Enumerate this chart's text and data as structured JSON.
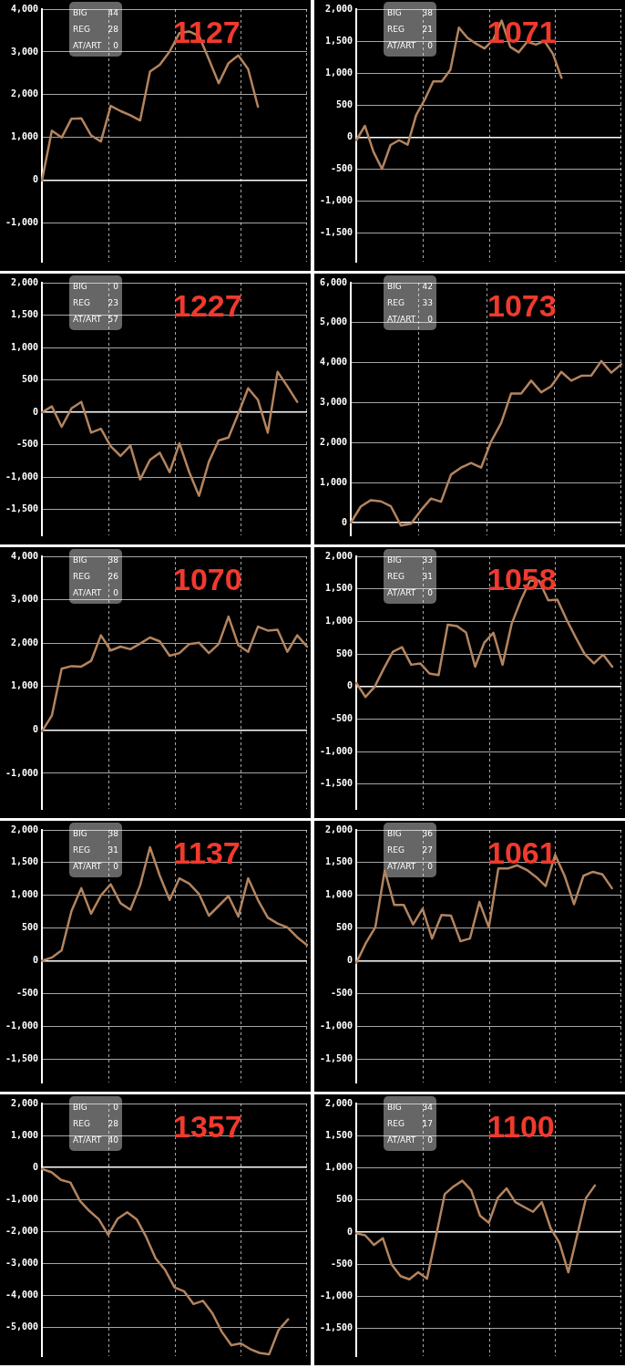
{
  "chart_data": [
    {
      "type": "line",
      "title": "1127",
      "annotations": [
        "BIG",
        "44",
        "REG",
        "28",
        "AT/ART",
        "0"
      ],
      "tick_labels": "y",
      "grid": true,
      "categories": [
        null,
        null,
        null,
        null,
        null,
        null,
        null,
        null,
        null,
        null,
        null,
        null,
        null,
        null,
        null,
        null,
        null,
        null,
        null,
        null,
        null,
        null,
        null,
        null,
        null,
        null,
        null,
        null
      ],
      "series": [
        {
          "color": "#b3845f",
          "values": [
            0,
            1160,
            1000,
            1440,
            1450,
            1050,
            910,
            1740,
            1620,
            1520,
            1400,
            2540,
            2700,
            3010,
            3440,
            3480,
            3370,
            2830,
            2270,
            2740,
            2920,
            2600,
            1720,
            null,
            null,
            null,
            null,
            null
          ]
        }
      ],
      "ylim": [
        -1900,
        4000
      ],
      "yticks": [
        {
          "value": 4000,
          "label": "4,000"
        },
        {
          "value": 3000,
          "label": "3,000"
        },
        {
          "value": 2000,
          "label": "2,000"
        },
        {
          "value": 1000,
          "label": "1,000"
        },
        0,
        {
          "value": -1000,
          "label": "-1,000"
        }
      ]
    },
    {
      "type": "line",
      "title": "1071",
      "annotations": [
        "BIG",
        "38",
        "REG",
        "21",
        "AT/ART",
        "0"
      ],
      "tick_labels": "y",
      "grid": true,
      "categories": [
        null,
        null,
        null,
        null,
        null,
        null,
        null,
        null,
        null,
        null,
        null,
        null,
        null,
        null,
        null,
        null,
        null,
        null,
        null,
        null,
        null,
        null,
        null,
        null,
        null,
        null,
        null,
        null,
        null,
        null,
        null,
        null
      ],
      "series": [
        {
          "color": "#b3845f",
          "values": [
            -50,
            175,
            -230,
            -500,
            -125,
            -50,
            -120,
            345,
            585,
            870,
            870,
            1050,
            1710,
            1550,
            1460,
            1385,
            1520,
            1820,
            1410,
            1325,
            1490,
            1445,
            1500,
            1300,
            925,
            null,
            null,
            null,
            null,
            null,
            null,
            null
          ]
        }
      ],
      "ylim": [
        -1950,
        2000
      ],
      "yticks": [
        {
          "value": 2000,
          "label": "2,000"
        },
        {
          "value": 1500,
          "label": "1,500"
        },
        {
          "value": 1000,
          "label": "1,000"
        },
        500,
        0,
        -500,
        {
          "value": -1000,
          "label": "-1,000"
        },
        {
          "value": -1500,
          "label": "-1,500"
        }
      ]
    },
    {
      "type": "line",
      "title": "1227",
      "annotations": [
        "BIG",
        "0",
        "REG",
        "23",
        "AT/ART",
        "57"
      ],
      "tick_labels": "y",
      "grid": true,
      "categories": [
        null,
        null,
        null,
        null,
        null,
        null,
        null,
        null,
        null,
        null,
        null,
        null,
        null,
        null,
        null,
        null,
        null,
        null,
        null,
        null,
        null,
        null,
        null,
        null,
        null,
        null,
        null,
        null
      ],
      "series": [
        {
          "color": "#b3845f",
          "values": [
            0,
            90,
            -225,
            60,
            160,
            -315,
            -255,
            -525,
            -675,
            -515,
            -1035,
            -735,
            -625,
            -925,
            -480,
            -925,
            -1290,
            -765,
            -435,
            -390,
            -20,
            370,
            190,
            -315,
            625,
            400,
            160,
            null
          ]
        }
      ],
      "ylim": [
        -1900,
        2000
      ],
      "yticks": [
        {
          "value": 2000,
          "label": "2,000"
        },
        {
          "value": 1500,
          "label": "1,500"
        },
        {
          "value": 1000,
          "label": "1,000"
        },
        500,
        0,
        -500,
        {
          "value": -1000,
          "label": "-1,000"
        },
        {
          "value": -1500,
          "label": "-1,500"
        }
      ]
    },
    {
      "type": "line",
      "title": "1073",
      "annotations": [
        "BIG",
        "42",
        "REG",
        "33",
        "AT/ART",
        "0"
      ],
      "tick_labels": "y",
      "grid": true,
      "categories": [
        null,
        null,
        null,
        null,
        null,
        null,
        null,
        null,
        null,
        null,
        null,
        null,
        null,
        null,
        null,
        null,
        null,
        null,
        null,
        null,
        null,
        null,
        null,
        null,
        null,
        null,
        null,
        null
      ],
      "series": [
        {
          "color": "#b3845f",
          "values": [
            0,
            405,
            560,
            530,
            405,
            -75,
            -30,
            310,
            600,
            520,
            1200,
            1375,
            1490,
            1375,
            2030,
            2490,
            3230,
            3230,
            3550,
            3260,
            3410,
            3770,
            3550,
            3670,
            3680,
            4040,
            3750,
            3960
          ]
        }
      ],
      "ylim": [
        -320,
        6000
      ],
      "yticks": [
        {
          "value": 6000,
          "label": "6,000"
        },
        {
          "value": 5000,
          "label": "5,000"
        },
        {
          "value": 4000,
          "label": "4,000"
        },
        {
          "value": 3000,
          "label": "3,000"
        },
        {
          "value": 2000,
          "label": "2,000"
        },
        {
          "value": 1000,
          "label": "1,000"
        },
        0
      ]
    },
    {
      "type": "line",
      "title": "1070",
      "annotations": [
        "BIG",
        "38",
        "REG",
        "26",
        "AT/ART",
        "0"
      ],
      "tick_labels": "y",
      "grid": true,
      "categories": [
        null,
        null,
        null,
        null,
        null,
        null,
        null,
        null,
        null,
        null,
        null,
        null,
        null,
        null,
        null,
        null,
        null,
        null,
        null,
        null,
        null,
        null,
        null,
        null,
        null,
        null,
        null,
        null
      ],
      "series": [
        {
          "color": "#b3845f",
          "values": [
            -30,
            330,
            1410,
            1470,
            1460,
            1590,
            2180,
            1830,
            1920,
            1860,
            1990,
            2130,
            2040,
            1710,
            1770,
            1980,
            2010,
            1770,
            1980,
            2610,
            1950,
            1800,
            2380,
            2290,
            2310,
            1800,
            2180,
            1920
          ]
        }
      ],
      "ylim": [
        -1820,
        4000
      ],
      "yticks": [
        {
          "value": 4000,
          "label": "4,000"
        },
        {
          "value": 3000,
          "label": "3,000"
        },
        {
          "value": 2000,
          "label": "2,000"
        },
        {
          "value": 1000,
          "label": "1,000"
        },
        0,
        {
          "value": -1000,
          "label": "-1,000"
        }
      ]
    },
    {
      "type": "line",
      "title": "1058",
      "annotations": [
        "BIG",
        "33",
        "REG",
        "31",
        "AT/ART",
        "0"
      ],
      "tick_labels": "y",
      "grid": true,
      "categories": [
        null,
        null,
        null,
        null,
        null,
        null,
        null,
        null,
        null,
        null,
        null,
        null,
        null,
        null,
        null,
        null,
        null,
        null,
        null,
        null,
        null,
        null,
        null,
        null,
        null,
        null,
        null,
        null,
        null,
        null
      ],
      "series": [
        {
          "color": "#b3845f",
          "values": [
            55,
            -160,
            -5,
            275,
            535,
            605,
            335,
            355,
            200,
            175,
            950,
            930,
            830,
            305,
            675,
            825,
            335,
            965,
            1325,
            1625,
            1625,
            1325,
            1335,
            1030,
            755,
            495,
            355,
            490,
            305,
            null
          ]
        }
      ],
      "ylim": [
        -1880,
        2000
      ],
      "yticks": [
        {
          "value": 2000,
          "label": "2,000"
        },
        {
          "value": 1500,
          "label": "1,500"
        },
        {
          "value": 1000,
          "label": "1,000"
        },
        500,
        0,
        -500,
        {
          "value": -1000,
          "label": "-1,000"
        },
        {
          "value": -1500,
          "label": "-1,500"
        }
      ]
    },
    {
      "type": "line",
      "title": "1137",
      "annotations": [
        "BIG",
        "38",
        "REG",
        "31",
        "AT/ART",
        "0"
      ],
      "tick_labels": "y",
      "grid": true,
      "categories": [
        null,
        null,
        null,
        null,
        null,
        null,
        null,
        null,
        null,
        null,
        null,
        null,
        null,
        null,
        null,
        null,
        null,
        null,
        null,
        null,
        null,
        null,
        null,
        null,
        null,
        null,
        null,
        null
      ],
      "series": [
        {
          "color": "#b3845f",
          "values": [
            0,
            50,
            160,
            760,
            1110,
            720,
            1000,
            1170,
            880,
            780,
            1155,
            1735,
            1300,
            930,
            1260,
            1180,
            1020,
            690,
            840,
            990,
            675,
            1260,
            930,
            660,
            570,
            510,
            360,
            240
          ]
        }
      ],
      "ylim": [
        -1860,
        2000
      ],
      "yticks": [
        {
          "value": 2000,
          "label": "2,000"
        },
        {
          "value": 1500,
          "label": "1,500"
        },
        {
          "value": 1000,
          "label": "1,000"
        },
        500,
        0,
        -500,
        {
          "value": -1000,
          "label": "-1,000"
        },
        {
          "value": -1500,
          "label": "-1,500"
        }
      ]
    },
    {
      "type": "line",
      "title": "1061",
      "annotations": [
        "BIG",
        "36",
        "REG",
        "27",
        "AT/ART",
        "0"
      ],
      "tick_labels": "y",
      "grid": true,
      "categories": [
        null,
        null,
        null,
        null,
        null,
        null,
        null,
        null,
        null,
        null,
        null,
        null,
        null,
        null,
        null,
        null,
        null,
        null,
        null,
        null,
        null,
        null,
        null,
        null,
        null,
        null,
        null,
        null,
        null
      ],
      "series": [
        {
          "color": "#b3845f",
          "values": [
            -30,
            270,
            510,
            1380,
            855,
            855,
            555,
            795,
            340,
            700,
            690,
            300,
            340,
            900,
            510,
            1410,
            1410,
            1460,
            1390,
            1280,
            1140,
            1620,
            1300,
            865,
            1300,
            1360,
            1320,
            1110,
            null
          ]
        }
      ],
      "ylim": [
        -1860,
        2000
      ],
      "yticks": [
        {
          "value": 2000,
          "label": "2,000"
        },
        {
          "value": 1500,
          "label": "1,500"
        },
        {
          "value": 1000,
          "label": "1,000"
        },
        500,
        0,
        -500,
        {
          "value": -1000,
          "label": "-1,000"
        },
        {
          "value": -1500,
          "label": "-1,500"
        }
      ]
    },
    {
      "type": "line",
      "title": "1357",
      "annotations": [
        "BIG",
        "0",
        "REG",
        "28",
        "AT/ART",
        "40"
      ],
      "tick_labels": "y",
      "grid": true,
      "categories": [
        null,
        null,
        null,
        null,
        null,
        null,
        null,
        null,
        null,
        null,
        null,
        null,
        null,
        null,
        null,
        null,
        null,
        null,
        null,
        null,
        null,
        null,
        null,
        null,
        null,
        null,
        null,
        null,
        null
      ],
      "series": [
        {
          "color": "#b3845f",
          "values": [
            -50,
            -145,
            -390,
            -470,
            -1040,
            -1360,
            -1620,
            -2110,
            -1600,
            -1400,
            -1620,
            -2170,
            -2840,
            -3200,
            -3750,
            -3870,
            -4270,
            -4170,
            -4560,
            -5140,
            -5560,
            -5500,
            -5680,
            -5800,
            -5840,
            -5080,
            -4750,
            null,
            null
          ]
        }
      ],
      "ylim": [
        -5900,
        2000
      ],
      "yticks": [
        {
          "value": 2000,
          "label": "2,000"
        },
        {
          "value": 1000,
          "label": "1,000"
        },
        0,
        {
          "value": -1000,
          "label": "-1,000"
        },
        {
          "value": -2000,
          "label": "-2,000"
        },
        {
          "value": -3000,
          "label": "-3,000"
        },
        {
          "value": -4000,
          "label": "-4,000"
        },
        {
          "value": -5000,
          "label": "-5,000"
        }
      ]
    },
    {
      "type": "line",
      "title": "1100",
      "annotations": [
        "BIG",
        "34",
        "REG",
        "17",
        "AT/ART",
        "0"
      ],
      "tick_labels": "y",
      "grid": true,
      "categories": [
        null,
        null,
        null,
        null,
        null,
        null,
        null,
        null,
        null,
        null,
        null,
        null,
        null,
        null,
        null,
        null,
        null,
        null,
        null,
        null,
        null,
        null,
        null,
        null,
        null,
        null,
        null,
        null,
        null,
        null,
        null
      ],
      "series": [
        {
          "color": "#b3845f",
          "values": [
            -20,
            -50,
            -200,
            -95,
            -505,
            -685,
            -735,
            -625,
            -725,
            -80,
            590,
            710,
            800,
            650,
            255,
            145,
            530,
            680,
            465,
            390,
            315,
            465,
            60,
            -170,
            -625,
            -50,
            530,
            725,
            null,
            null,
            null
          ]
        }
      ],
      "ylim": [
        -1930,
        2000
      ],
      "yticks": [
        {
          "value": 2000,
          "label": "2,000"
        },
        {
          "value": 1500,
          "label": "1,500"
        },
        {
          "value": 1000,
          "label": "1,000"
        },
        500,
        0,
        -500,
        {
          "value": -1000,
          "label": "-1,000"
        },
        {
          "value": -1500,
          "label": "-1,500"
        }
      ]
    }
  ]
}
